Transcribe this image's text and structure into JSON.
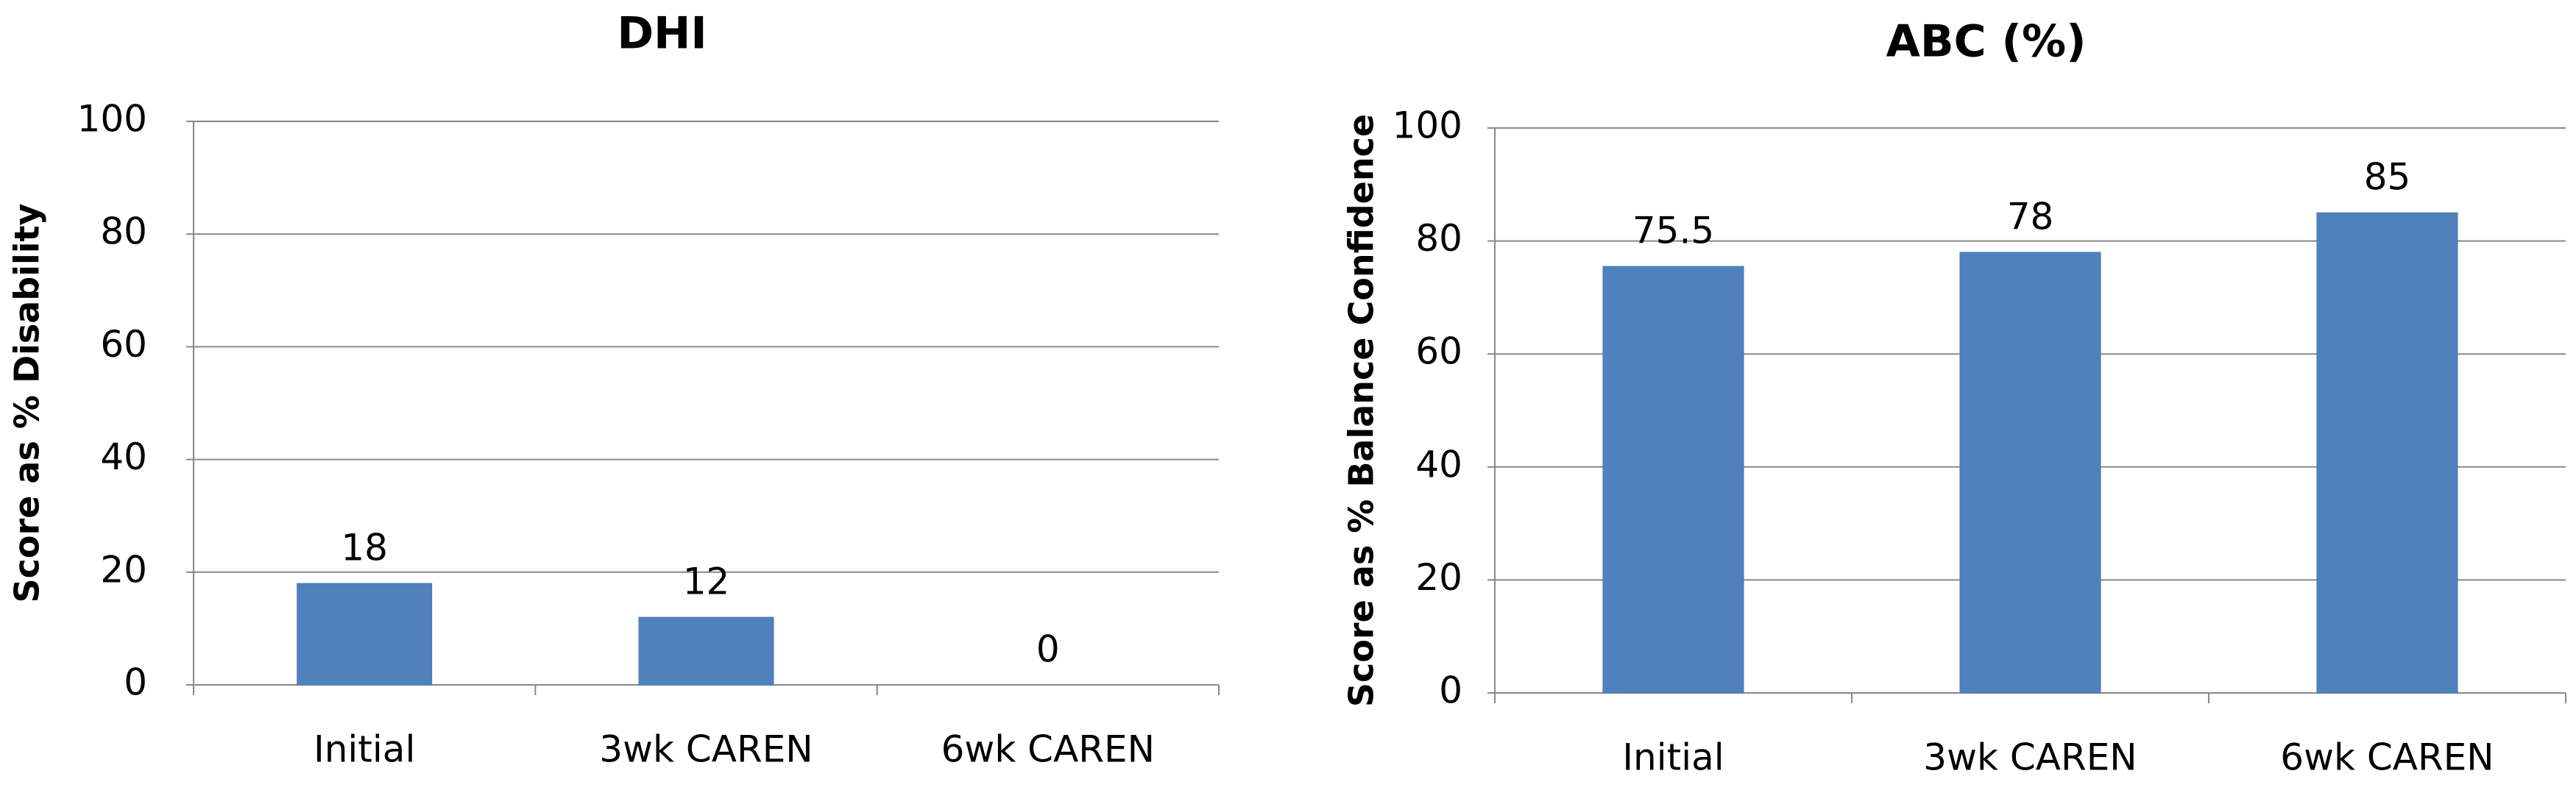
{
  "chart_data": [
    {
      "type": "bar",
      "title": "DHI",
      "y_label": "Score as % Disability",
      "categories": [
        "Initial",
        "3wk CAREN",
        "6wk CAREN"
      ],
      "values": [
        18,
        12,
        0
      ],
      "color": "#4f81bd",
      "ylim": [
        0,
        100
      ],
      "yticks": [
        0,
        20,
        40,
        60,
        80,
        100
      ],
      "grid": true
    },
    {
      "type": "bar",
      "title": "ABC (%)",
      "y_label": "Score as % Balance Confidence",
      "categories": [
        "Initial",
        "3wk CAREN",
        "6wk CAREN"
      ],
      "values": [
        75.5,
        78,
        85
      ],
      "color": "#4f81bd",
      "ylim": [
        0,
        100
      ],
      "yticks": [
        0,
        20,
        40,
        60,
        80,
        100
      ],
      "grid": true
    }
  ]
}
